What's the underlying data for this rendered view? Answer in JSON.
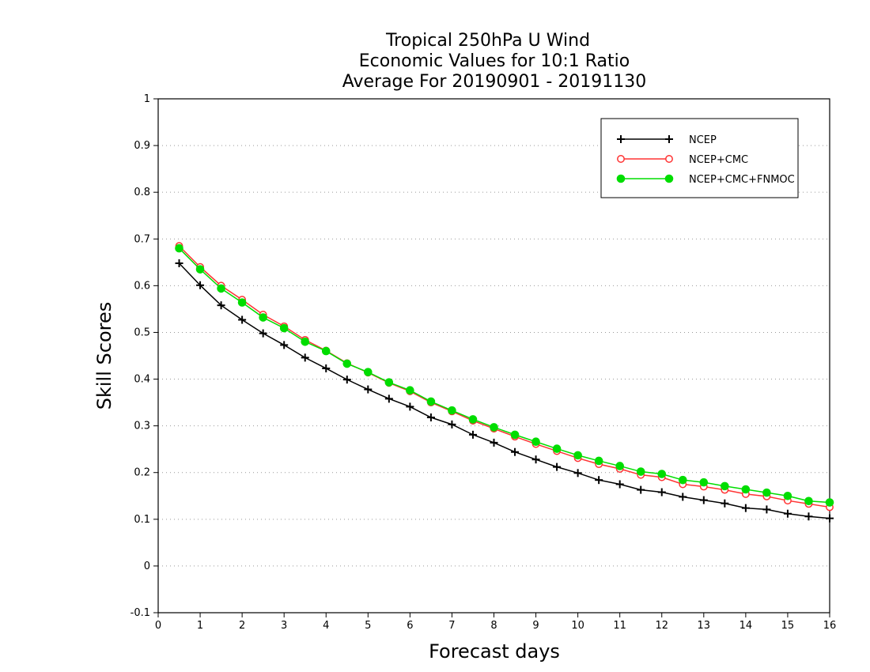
{
  "chart_data": {
    "type": "line",
    "title_lines": [
      "Tropical 250hPa U Wind",
      "Economic Values for 10:1 Ratio",
      "Average For 20190901 - 20191130"
    ],
    "xlabel": "Forecast days",
    "ylabel": "Skill Scores",
    "xlim": [
      0,
      16
    ],
    "ylim": [
      -0.1,
      1
    ],
    "x_ticks": [
      0,
      1,
      2,
      3,
      4,
      5,
      6,
      7,
      8,
      9,
      10,
      11,
      12,
      13,
      14,
      15,
      16
    ],
    "x_tick_labels": [
      "0",
      "1",
      "2",
      "3",
      "4",
      "5",
      "6",
      "7",
      "8",
      "9",
      "10",
      "11",
      "12",
      "13",
      "14",
      "15",
      "16"
    ],
    "y_ticks": [
      -0.1,
      0,
      0.1,
      0.2,
      0.3,
      0.4,
      0.5,
      0.6,
      0.7,
      0.8,
      0.9,
      1
    ],
    "y_tick_labels": [
      "-0.1",
      "0",
      "0.1",
      "0.2",
      "0.3",
      "0.4",
      "0.5",
      "0.6",
      "0.7",
      "0.8",
      "0.9",
      "1"
    ],
    "grid": "horizontal dotted",
    "legend_position": "top-right",
    "x": [
      0.5,
      1,
      1.5,
      2,
      2.5,
      3,
      3.5,
      4,
      4.5,
      5,
      5.5,
      6,
      6.5,
      7,
      7.5,
      8,
      8.5,
      9,
      9.5,
      10,
      10.5,
      11,
      11.5,
      12,
      12.5,
      13,
      13.5,
      14,
      14.5,
      15,
      15.5,
      16
    ],
    "series": [
      {
        "name": "NCEP",
        "color": "#000000",
        "marker": "plus",
        "values": [
          0.648,
          0.601,
          0.558,
          0.527,
          0.498,
          0.473,
          0.446,
          0.423,
          0.399,
          0.378,
          0.358,
          0.341,
          0.318,
          0.303,
          0.281,
          0.264,
          0.244,
          0.228,
          0.212,
          0.199,
          0.184,
          0.175,
          0.163,
          0.158,
          0.148,
          0.141,
          0.134,
          0.124,
          0.121,
          0.112,
          0.106,
          0.102
        ]
      },
      {
        "name": "NCEP+CMC",
        "color": "#ff3333",
        "marker": "open-circle",
        "values": [
          0.685,
          0.64,
          0.6,
          0.57,
          0.538,
          0.513,
          0.484,
          0.461,
          0.434,
          0.414,
          0.392,
          0.374,
          0.35,
          0.331,
          0.311,
          0.294,
          0.277,
          0.261,
          0.246,
          0.231,
          0.218,
          0.208,
          0.195,
          0.19,
          0.175,
          0.17,
          0.163,
          0.154,
          0.149,
          0.14,
          0.133,
          0.126
        ]
      },
      {
        "name": "NCEP+CMC+FNMOC",
        "color": "#00dd00",
        "marker": "filled-circle",
        "values": [
          0.68,
          0.635,
          0.594,
          0.564,
          0.532,
          0.509,
          0.48,
          0.46,
          0.433,
          0.415,
          0.393,
          0.376,
          0.352,
          0.333,
          0.314,
          0.297,
          0.281,
          0.266,
          0.251,
          0.237,
          0.225,
          0.214,
          0.202,
          0.197,
          0.184,
          0.179,
          0.171,
          0.164,
          0.157,
          0.15,
          0.139,
          0.136
        ]
      }
    ]
  }
}
